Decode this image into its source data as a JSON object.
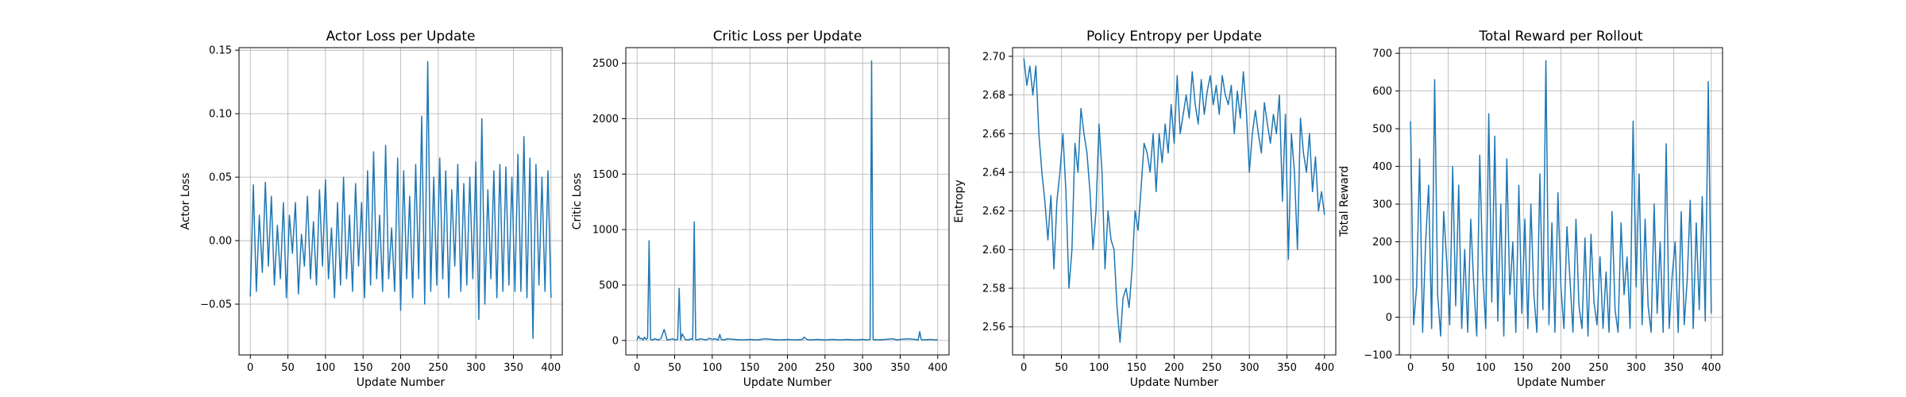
{
  "colors": {
    "line": "#1f77b4",
    "grid": "#b0b0b0",
    "axis": "#000000"
  },
  "chart_data": [
    {
      "type": "line",
      "title": "Actor Loss per Update",
      "xlabel": "Update Number",
      "ylabel": "Actor Loss",
      "xlim": [
        -15,
        415
      ],
      "ylim": [
        -0.09,
        0.152
      ],
      "grid": true,
      "xticks": [
        0,
        50,
        100,
        150,
        200,
        250,
        300,
        350,
        400
      ],
      "xtick_labels": [
        "0",
        "50",
        "100",
        "150",
        "200",
        "250",
        "300",
        "350",
        "400"
      ],
      "yticks": [
        -0.05,
        0.0,
        0.05,
        0.1,
        0.15
      ],
      "ytick_labels": [
        "−0.05",
        "0.00",
        "0.05",
        "0.10",
        "0.15"
      ],
      "series": [
        {
          "x": [
            0,
            4,
            8,
            12,
            16,
            20,
            24,
            28,
            32,
            36,
            40,
            44,
            48,
            52,
            56,
            60,
            64,
            68,
            72,
            76,
            80,
            84,
            88,
            92,
            96,
            100,
            104,
            108,
            112,
            116,
            120,
            124,
            128,
            132,
            136,
            140,
            144,
            148,
            152,
            156,
            160,
            164,
            168,
            172,
            176,
            180,
            184,
            188,
            192,
            196,
            200,
            204,
            208,
            212,
            216,
            220,
            224,
            228,
            232,
            236,
            240,
            244,
            248,
            252,
            256,
            260,
            264,
            268,
            272,
            276,
            280,
            284,
            288,
            292,
            296,
            300,
            304,
            308,
            312,
            316,
            320,
            324,
            328,
            332,
            336,
            340,
            344,
            348,
            352,
            356,
            360,
            364,
            368,
            372,
            376,
            380,
            384,
            388,
            392,
            396,
            400
          ],
          "values": [
            -0.044,
            0.044,
            -0.04,
            0.02,
            -0.025,
            0.046,
            -0.02,
            0.035,
            -0.035,
            0.012,
            -0.03,
            0.03,
            -0.045,
            0.02,
            -0.01,
            0.03,
            -0.042,
            0.005,
            -0.02,
            0.035,
            -0.03,
            0.015,
            -0.035,
            0.04,
            -0.02,
            0.048,
            -0.03,
            0.01,
            -0.045,
            0.03,
            -0.035,
            0.05,
            -0.03,
            0.02,
            -0.04,
            0.045,
            -0.02,
            0.03,
            -0.045,
            0.055,
            -0.035,
            0.07,
            -0.03,
            0.02,
            -0.04,
            0.075,
            -0.03,
            0.01,
            -0.04,
            0.065,
            -0.055,
            0.055,
            -0.03,
            0.035,
            -0.045,
            0.06,
            -0.03,
            0.098,
            -0.05,
            0.141,
            -0.04,
            0.05,
            -0.035,
            0.065,
            -0.03,
            0.055,
            -0.045,
            0.04,
            -0.02,
            0.06,
            -0.04,
            0.045,
            -0.035,
            0.05,
            -0.03,
            0.062,
            -0.062,
            0.096,
            -0.05,
            0.04,
            -0.03,
            0.055,
            -0.045,
            0.06,
            -0.04,
            0.058,
            -0.035,
            0.05,
            -0.04,
            0.068,
            -0.04,
            0.082,
            -0.045,
            0.065,
            -0.077,
            0.06,
            -0.035,
            0.05,
            -0.04,
            0.055,
            -0.045
          ]
        }
      ]
    },
    {
      "type": "line",
      "title": "Critic Loss per Update",
      "xlabel": "Update Number",
      "ylabel": "Critic Loss",
      "xlim": [
        -15,
        415
      ],
      "ylim": [
        -130,
        2640
      ],
      "grid": true,
      "xticks": [
        0,
        50,
        100,
        150,
        200,
        250,
        300,
        350,
        400
      ],
      "xtick_labels": [
        "0",
        "50",
        "100",
        "150",
        "200",
        "250",
        "300",
        "350",
        "400"
      ],
      "yticks": [
        0,
        500,
        1000,
        1500,
        2000,
        2500
      ],
      "ytick_labels": [
        "0",
        "500",
        "1000",
        "1500",
        "2000",
        "2500"
      ],
      "series": [
        {
          "x": [
            0,
            2,
            4,
            6,
            8,
            10,
            12,
            14,
            16,
            18,
            20,
            24,
            28,
            30,
            32,
            36,
            40,
            44,
            48,
            50,
            54,
            56,
            58,
            60,
            64,
            68,
            72,
            74,
            76,
            78,
            80,
            84,
            88,
            92,
            96,
            100,
            104,
            108,
            110,
            112,
            116,
            120,
            130,
            140,
            150,
            160,
            170,
            180,
            190,
            200,
            210,
            220,
            222,
            226,
            230,
            240,
            250,
            260,
            270,
            280,
            290,
            300,
            306,
            310,
            312,
            314,
            316,
            318,
            320,
            330,
            340,
            346,
            350,
            360,
            370,
            374,
            376,
            378,
            380,
            390,
            398,
            400
          ],
          "values": [
            5,
            40,
            15,
            20,
            5,
            30,
            10,
            20,
            900,
            10,
            5,
            15,
            5,
            10,
            20,
            100,
            5,
            10,
            15,
            5,
            10,
            470,
            5,
            60,
            10,
            5,
            15,
            10,
            1070,
            10,
            5,
            15,
            10,
            5,
            20,
            10,
            15,
            5,
            55,
            10,
            5,
            15,
            10,
            5,
            10,
            5,
            15,
            10,
            5,
            10,
            5,
            10,
            30,
            10,
            5,
            10,
            5,
            10,
            5,
            10,
            5,
            10,
            5,
            10,
            2520,
            10,
            5,
            10,
            5,
            10,
            15,
            5,
            10,
            15,
            10,
            5,
            80,
            10,
            5,
            10,
            5,
            10
          ]
        }
      ]
    },
    {
      "type": "line",
      "title": "Policy Entropy per Update",
      "xlabel": "Update Number",
      "ylabel": "Entropy",
      "xlim": [
        -15,
        415
      ],
      "ylim": [
        2.5455,
        2.7045
      ],
      "grid": true,
      "xticks": [
        0,
        50,
        100,
        150,
        200,
        250,
        300,
        350,
        400
      ],
      "xtick_labels": [
        "0",
        "50",
        "100",
        "150",
        "200",
        "250",
        "300",
        "350",
        "400"
      ],
      "yticks": [
        2.56,
        2.58,
        2.6,
        2.62,
        2.64,
        2.66,
        2.68,
        2.7
      ],
      "ytick_labels": [
        "2.56",
        "2.58",
        "2.60",
        "2.62",
        "2.64",
        "2.66",
        "2.68",
        "2.70"
      ],
      "series": [
        {
          "x": [
            0,
            4,
            8,
            12,
            16,
            20,
            24,
            28,
            32,
            36,
            40,
            44,
            48,
            52,
            56,
            60,
            64,
            68,
            72,
            76,
            80,
            84,
            88,
            92,
            96,
            100,
            104,
            108,
            112,
            116,
            120,
            124,
            128,
            132,
            136,
            140,
            144,
            148,
            152,
            156,
            160,
            164,
            168,
            172,
            176,
            180,
            184,
            188,
            192,
            196,
            200,
            204,
            208,
            212,
            216,
            220,
            224,
            228,
            232,
            236,
            240,
            244,
            248,
            252,
            256,
            260,
            264,
            268,
            272,
            276,
            280,
            284,
            288,
            292,
            296,
            300,
            304,
            308,
            312,
            316,
            320,
            324,
            328,
            332,
            336,
            340,
            344,
            348,
            352,
            356,
            360,
            364,
            368,
            372,
            376,
            380,
            384,
            388,
            392,
            396,
            400
          ],
          "values": [
            2.699,
            2.685,
            2.695,
            2.68,
            2.695,
            2.66,
            2.64,
            2.625,
            2.605,
            2.628,
            2.59,
            2.625,
            2.64,
            2.66,
            2.63,
            2.58,
            2.6,
            2.655,
            2.64,
            2.673,
            2.66,
            2.65,
            2.63,
            2.6,
            2.62,
            2.665,
            2.64,
            2.59,
            2.62,
            2.605,
            2.6,
            2.57,
            2.552,
            2.575,
            2.58,
            2.57,
            2.59,
            2.62,
            2.61,
            2.632,
            2.655,
            2.65,
            2.64,
            2.66,
            2.63,
            2.66,
            2.645,
            2.665,
            2.65,
            2.675,
            2.655,
            2.69,
            2.66,
            2.67,
            2.68,
            2.668,
            2.692,
            2.675,
            2.665,
            2.688,
            2.67,
            2.682,
            2.69,
            2.675,
            2.685,
            2.67,
            2.69,
            2.68,
            2.675,
            2.685,
            2.66,
            2.682,
            2.668,
            2.692,
            2.672,
            2.64,
            2.66,
            2.672,
            2.66,
            2.65,
            2.676,
            2.665,
            2.655,
            2.67,
            2.66,
            2.68,
            2.625,
            2.67,
            2.595,
            2.66,
            2.64,
            2.6,
            2.668,
            2.65,
            2.64,
            2.66,
            2.63,
            2.648,
            2.62,
            2.63,
            2.618
          ]
        }
      ]
    },
    {
      "type": "line",
      "title": "Total Reward per Rollout",
      "xlabel": "Update Number",
      "ylabel": "Total Reward",
      "xlim": [
        -15,
        415
      ],
      "ylim": [
        -100,
        715
      ],
      "grid": true,
      "xticks": [
        0,
        50,
        100,
        150,
        200,
        250,
        300,
        350,
        400
      ],
      "xtick_labels": [
        "0",
        "50",
        "100",
        "150",
        "200",
        "250",
        "300",
        "350",
        "400"
      ],
      "yticks": [
        -100,
        0,
        100,
        200,
        300,
        400,
        500,
        600,
        700
      ],
      "ytick_labels": [
        "−100",
        "0",
        "100",
        "200",
        "300",
        "400",
        "500",
        "600",
        "700"
      ],
      "series": [
        {
          "x": [
            0,
            4,
            8,
            12,
            16,
            20,
            24,
            28,
            32,
            36,
            40,
            44,
            48,
            52,
            56,
            60,
            64,
            68,
            72,
            76,
            80,
            84,
            88,
            92,
            96,
            100,
            104,
            108,
            112,
            116,
            120,
            124,
            128,
            132,
            136,
            140,
            144,
            148,
            152,
            156,
            160,
            164,
            168,
            172,
            176,
            180,
            184,
            188,
            192,
            196,
            200,
            204,
            208,
            212,
            216,
            220,
            224,
            228,
            232,
            236,
            240,
            244,
            248,
            252,
            256,
            260,
            264,
            268,
            272,
            276,
            280,
            284,
            288,
            292,
            296,
            300,
            304,
            308,
            312,
            316,
            320,
            324,
            328,
            332,
            336,
            340,
            344,
            348,
            352,
            356,
            360,
            364,
            368,
            372,
            376,
            380,
            384,
            388,
            392,
            396,
            400
          ],
          "values": [
            520,
            -20,
            80,
            420,
            -40,
            200,
            350,
            -30,
            630,
            60,
            -50,
            280,
            150,
            -20,
            400,
            30,
            350,
            -30,
            180,
            -40,
            260,
            90,
            -50,
            430,
            120,
            -30,
            540,
            40,
            480,
            -10,
            300,
            -50,
            420,
            60,
            200,
            -40,
            350,
            10,
            260,
            -30,
            300,
            60,
            -40,
            380,
            20,
            680,
            -20,
            250,
            -40,
            330,
            80,
            -30,
            240,
            100,
            -40,
            260,
            30,
            -30,
            210,
            -50,
            220,
            40,
            -20,
            160,
            -30,
            120,
            -40,
            280,
            20,
            -40,
            250,
            60,
            160,
            -30,
            520,
            80,
            380,
            -20,
            260,
            30,
            -40,
            300,
            10,
            200,
            -40,
            460,
            -30,
            110,
            200,
            -40,
            280,
            -20,
            100,
            310,
            -30,
            250,
            20,
            320,
            -10,
            625,
            10
          ]
        }
      ]
    }
  ]
}
